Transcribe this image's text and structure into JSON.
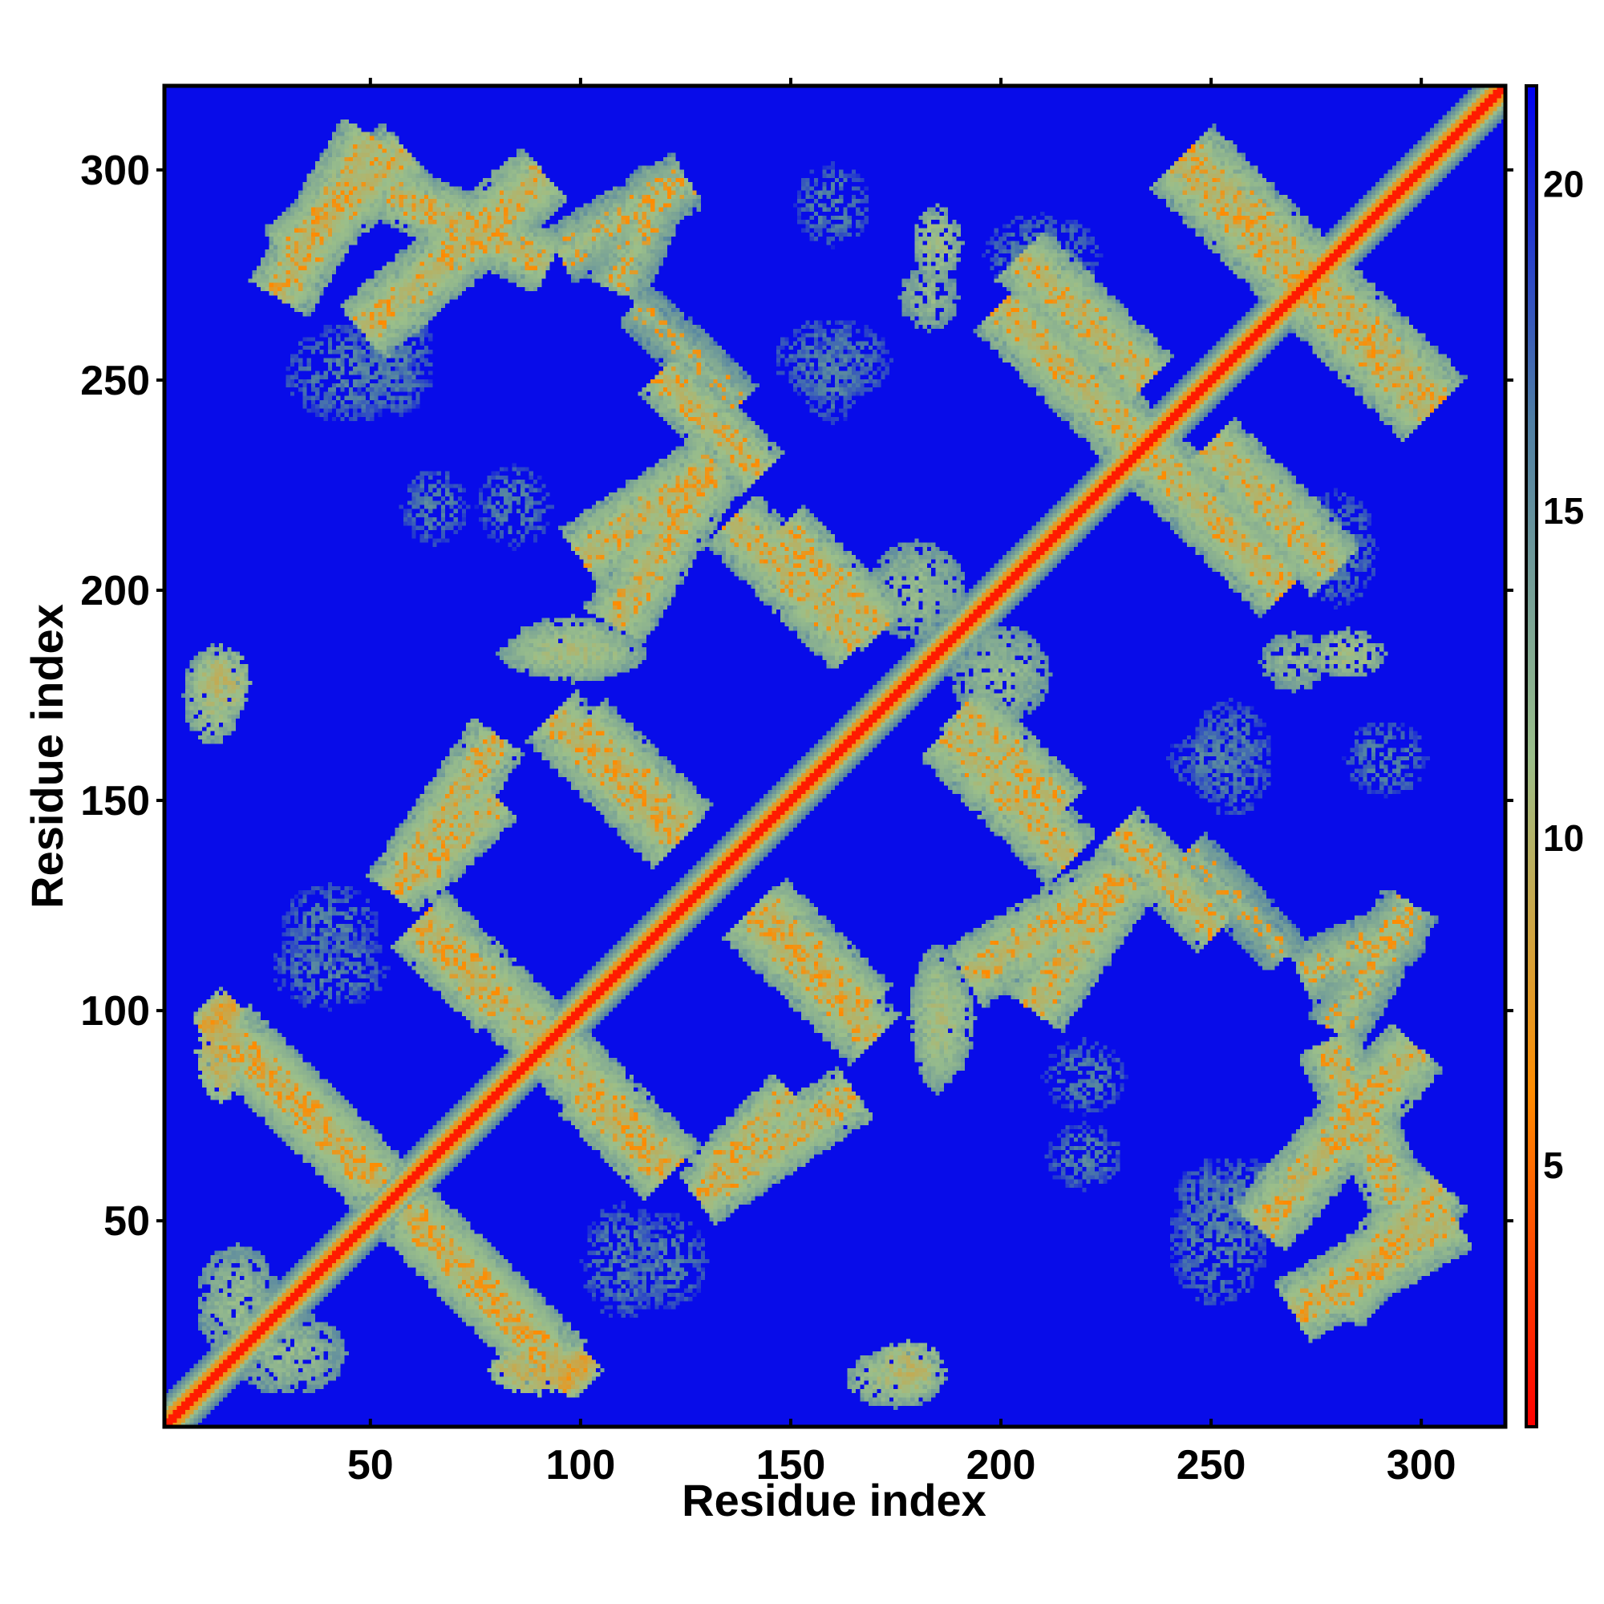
{
  "chart_data": {
    "type": "heatmap",
    "title": "",
    "xlabel": "Residue index",
    "ylabel": "Residue index",
    "xlim": [
      1,
      320
    ],
    "ylim": [
      1,
      320
    ],
    "xticks": [
      50,
      100,
      150,
      200,
      250,
      300
    ],
    "yticks": [
      50,
      100,
      150,
      200,
      250,
      300
    ],
    "xtick_labels": [
      "50",
      "100",
      "150",
      "200",
      "250",
      "300"
    ],
    "ytick_labels": [
      "50",
      "100",
      "150",
      "200",
      "250",
      "300"
    ],
    "colorbar": {
      "range": [
        1,
        21.5
      ],
      "ticks": [
        5,
        10,
        15,
        20
      ],
      "tick_labels": [
        "5",
        "10",
        "15",
        "20"
      ],
      "colors": [
        "#ff0000",
        "#ff8c00",
        "#9bbf8a",
        "#4f7fa5",
        "#0000f0"
      ]
    },
    "background_value": 21,
    "diagonal": {
      "core_value": 2,
      "halfwidth": 3
    },
    "contact_bands": [
      {
        "orientation": "anti",
        "from": [
          48,
          262
        ],
        "to": [
          91,
          299
        ],
        "value": 11,
        "width": 8
      },
      {
        "orientation": "anti",
        "from": [
          17,
          102
        ],
        "to": [
          10,
          95
        ],
        "value": 9,
        "width": 4
      },
      {
        "orientation": "anti",
        "from": [
          20,
          90
        ],
        "to": [
          52,
          58
        ],
        "value": 11,
        "width": 8
      },
      {
        "orientation": "anti",
        "from": [
          60,
          50
        ],
        "to": [
          95,
          15
        ],
        "value": 11,
        "width": 8
      },
      {
        "orientation": "anti",
        "from": [
          62,
          122
        ],
        "to": [
          92,
          92
        ],
        "value": 11,
        "width": 8
      },
      {
        "orientation": "anti",
        "from": [
          100,
          168
        ],
        "to": [
          125,
          143
        ],
        "value": 11,
        "width": 8
      },
      {
        "orientation": "anti",
        "from": [
          100,
          80
        ],
        "to": [
          120,
          60
        ],
        "value": 11,
        "width": 7
      },
      {
        "orientation": "anti",
        "from": [
          140,
          123
        ],
        "to": [
          170,
          93
        ],
        "value": 11,
        "width": 8
      },
      {
        "orientation": "anti",
        "from": [
          148,
          215
        ],
        "to": [
          172,
          191
        ],
        "value": 11,
        "width": 7
      },
      {
        "orientation": "anti",
        "from": [
          187,
          166
        ],
        "to": [
          217,
          136
        ],
        "value": 11,
        "width": 8
      },
      {
        "orientation": "anti",
        "from": [
          205,
          280
        ],
        "to": [
          235,
          250
        ],
        "value": 11,
        "width": 8
      },
      {
        "orientation": "anti",
        "from": [
          228,
          143
        ],
        "to": [
          252,
          119
        ],
        "value": 11,
        "width": 7
      },
      {
        "orientation": "anti",
        "from": [
          233,
          235
        ],
        "to": [
          268,
          200
        ],
        "value": 11,
        "width": 8
      },
      {
        "orientation": "anti",
        "from": [
          242,
          302
        ],
        "to": [
          275,
          269
        ],
        "value": 11,
        "width": 8
      },
      {
        "orientation": "anti",
        "from": [
          275,
          275
        ],
        "to": [
          305,
          245
        ],
        "value": 11,
        "width": 8
      },
      {
        "orientation": "parallel",
        "from": [
          28,
          270
        ],
        "to": [
          50,
          308
        ],
        "value": 11,
        "width": 8
      },
      {
        "orientation": "parallel",
        "from": [
          108,
          272
        ],
        "to": [
          120,
          298
        ],
        "value": 12,
        "width": 7
      },
      {
        "orientation": "parallel",
        "from": [
          55,
          128
        ],
        "to": [
          80,
          165
        ],
        "value": 11,
        "width": 7
      },
      {
        "orientation": "parallel",
        "from": [
          108,
          192
        ],
        "to": [
          130,
          228
        ],
        "value": 11,
        "width": 8
      },
      {
        "orientation": "parallel",
        "from": [
          130,
          60
        ],
        "to": [
          150,
          80
        ],
        "value": 11,
        "width": 6
      },
      {
        "orientation": "parallel",
        "from": [
          208,
          100
        ],
        "to": [
          230,
          132
        ],
        "value": 11,
        "width": 8
      },
      {
        "orientation": "parallel",
        "from": [
          280,
          95
        ],
        "to": [
          298,
          125
        ],
        "value": 12,
        "width": 7
      },
      {
        "orientation": "parallel",
        "from": [
          280,
          30
        ],
        "to": [
          305,
          58
        ],
        "value": 11,
        "width": 8
      },
      {
        "orientation": "anti",
        "from": [
          278,
          92
        ],
        "to": [
          295,
          55
        ],
        "value": 11,
        "width": 7
      },
      {
        "orientation": "anti",
        "from": [
          113,
          268
        ],
        "to": [
          138,
          245
        ],
        "value": 13,
        "width": 6
      }
    ],
    "contact_blobs": [
      {
        "x": 14,
        "y": 178,
        "rx": 7,
        "ry": 9,
        "value": 10
      },
      {
        "x": 18,
        "y": 30,
        "rx": 10,
        "ry": 14,
        "value": 12
      },
      {
        "x": 90,
        "y": 14,
        "rx": 12,
        "ry": 6,
        "value": 9
      },
      {
        "x": 98,
        "y": 186,
        "rx": 16,
        "ry": 8,
        "value": 11
      },
      {
        "x": 185,
        "y": 98,
        "rx": 6,
        "ry": 18,
        "value": 11
      },
      {
        "x": 183,
        "y": 270,
        "rx": 7,
        "ry": 8,
        "value": 12
      },
      {
        "x": 175,
        "y": 12,
        "rx": 12,
        "ry": 7,
        "value": 11
      },
      {
        "x": 283,
        "y": 185,
        "rx": 9,
        "ry": 6,
        "value": 11
      },
      {
        "x": 180,
        "y": 200,
        "rx": 12,
        "ry": 12,
        "value": 12
      },
      {
        "x": 45,
        "y": 252,
        "rx": 16,
        "ry": 12,
        "value": 16
      },
      {
        "x": 84,
        "y": 220,
        "rx": 9,
        "ry": 10,
        "value": 16
      },
      {
        "x": 160,
        "y": 255,
        "rx": 14,
        "ry": 10,
        "value": 16
      },
      {
        "x": 255,
        "y": 55,
        "rx": 14,
        "ry": 10,
        "value": 16
      },
      {
        "x": 220,
        "y": 65,
        "rx": 9,
        "ry": 8,
        "value": 16
      },
      {
        "x": 250,
        "y": 160,
        "rx": 10,
        "ry": 8,
        "value": 16
      },
      {
        "x": 292,
        "y": 160,
        "rx": 10,
        "ry": 9,
        "value": 16
      },
      {
        "x": 40,
        "y": 110,
        "rx": 14,
        "ry": 10,
        "value": 16
      },
      {
        "x": 210,
        "y": 280,
        "rx": 14,
        "ry": 10,
        "value": 16
      },
      {
        "x": 120,
        "y": 40,
        "rx": 10,
        "ry": 12,
        "value": 16
      }
    ]
  }
}
